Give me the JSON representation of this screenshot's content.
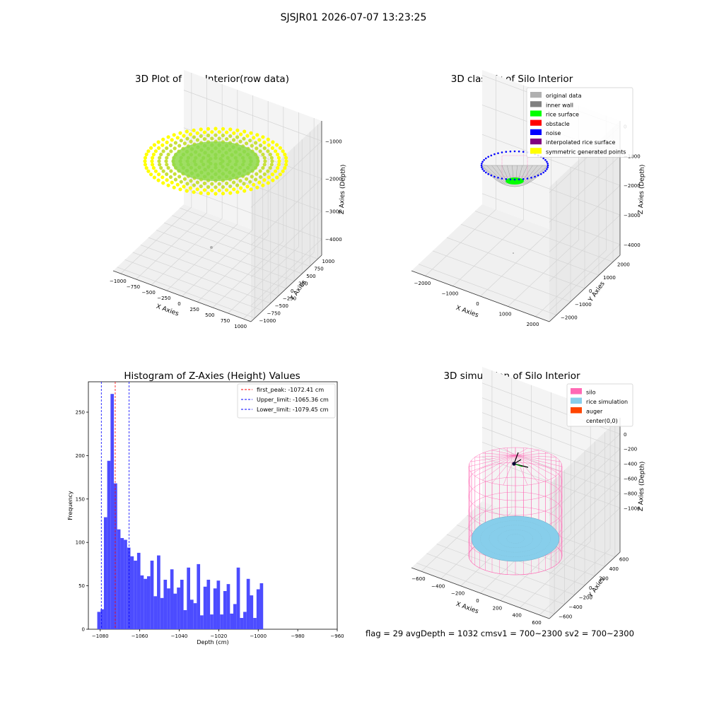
{
  "suptitle": "SJSJR01 2026-07-07 13:23:25",
  "status_line": "flag = 29  avgDepth = 1032 cmsv1 = 700~2300  sv2 = 700~2300",
  "colors": {
    "original": "#b0b0b0",
    "inner_wall": "#808080",
    "rice_surface": "#00ff00",
    "obstacle": "#ff0000",
    "noise": "#0000ff",
    "interpolated": "#800080",
    "symmetric": "#ffff00",
    "hist_bar": "#4c4cff",
    "silo": "#ff69b4",
    "rice_sim": "#87ceeb",
    "auger": "#ff4500"
  },
  "chart_data": [
    {
      "type": "scatter3d",
      "title": "3D Plot of Silo Interior(row data)",
      "xlabel": "X Axies",
      "ylabel": "Y Axies",
      "zlabel": "Z Axies (Depth)",
      "xticks": [
        "−1000",
        "−750",
        "−500",
        "−250",
        "0",
        "250",
        "500",
        "750",
        "1000"
      ],
      "yticks": [
        "−1000",
        "−750",
        "−500",
        "−250",
        "0",
        "250",
        "500",
        "750",
        "1000"
      ],
      "zticks": [
        "−1000",
        "−2000",
        "−3000",
        "−4000"
      ],
      "xlim": [
        -1000,
        1000
      ],
      "ylim": [
        -1000,
        1000
      ],
      "zlim": [
        -4500,
        -500
      ],
      "description_values": {
        "surface_radius": 1000,
        "surface_depth": -1000,
        "stray_point": [
          0,
          0,
          -4000
        ]
      }
    },
    {
      "type": "scatter3d",
      "title": "3D classify of Silo Interior",
      "xlabel": "X Axies",
      "ylabel": "Y Axies",
      "zlabel": "Z Axies (Depth)",
      "xticks": [
        "−2000",
        "−1000",
        "0",
        "1000",
        "2000"
      ],
      "yticks": [
        "−2000",
        "−1000",
        "0",
        "1000",
        "2000"
      ],
      "zticks": [
        "0",
        "−1000",
        "−2000",
        "−3000",
        "−4000"
      ],
      "xlim": [
        -2300,
        2300
      ],
      "ylim": [
        -2300,
        2300
      ],
      "zlim": [
        -4500,
        300
      ],
      "legend_position": "top-right",
      "legend": [
        {
          "label": "original data",
          "color_key": "original"
        },
        {
          "label": "inner wall",
          "color_key": "inner_wall"
        },
        {
          "label": "rice surface",
          "color_key": "rice_surface"
        },
        {
          "label": "obstacle",
          "color_key": "obstacle"
        },
        {
          "label": "noise",
          "color_key": "noise"
        },
        {
          "label": "interpolated rice surface",
          "color_key": "interpolated"
        },
        {
          "label": "symmetric generated points",
          "color_key": "symmetric"
        }
      ]
    },
    {
      "type": "bar",
      "title": "Histogram of Z-Axies (Height) Values",
      "xlabel": "Depth (cm)",
      "ylabel": "Frequency",
      "xlim": [
        -1086,
        -960
      ],
      "ylim": [
        0,
        285
      ],
      "xticks": [
        -1080,
        -1060,
        -1040,
        -1020,
        -1000,
        -980,
        -960
      ],
      "xtick_labels": [
        "−1080",
        "−1060",
        "−1040",
        "−1020",
        "−1000",
        "−980",
        "−960"
      ],
      "yticks": [
        0,
        50,
        100,
        150,
        200,
        250
      ],
      "bin_start": -1081.5,
      "bin_width": 1.68,
      "values": [
        20,
        23,
        129,
        194,
        271,
        168,
        115,
        105,
        103,
        94,
        84,
        79,
        88,
        62,
        58,
        61,
        79,
        38,
        85,
        36,
        57,
        47,
        69,
        41,
        48,
        57,
        22,
        71,
        34,
        30,
        75,
        16,
        49,
        57,
        17,
        47,
        56,
        17,
        44,
        52,
        18,
        29,
        71,
        13,
        20,
        58,
        39,
        13,
        46,
        53
      ],
      "legend_position": "top-right",
      "lines": [
        {
          "label": "first_peak: -1072.41 cm",
          "x": -1072.41,
          "color": "#ff0000"
        },
        {
          "label": "Upper_limit: -1065.36 cm",
          "x": -1065.36,
          "color": "#0000ff"
        },
        {
          "label": "Lower_limit: -1079.45 cm",
          "x": -1079.45,
          "color": "#0000ff"
        }
      ]
    },
    {
      "type": "surface3d",
      "title": "3D simulation of Silo Interior",
      "xlabel": "X Axies",
      "ylabel": "Y Axies",
      "zlabel": "Z Axies (Depth)",
      "xticks": [
        "−600",
        "−400",
        "−200",
        "0",
        "200",
        "400",
        "600"
      ],
      "yticks": [
        "−600",
        "−400",
        "−200",
        "0",
        "200",
        "400",
        "600"
      ],
      "zticks": [
        "0",
        "−200",
        "−400",
        "−600",
        "−800",
        "−1000"
      ],
      "xlim": [
        -650,
        650
      ],
      "ylim": [
        -650,
        650
      ],
      "zlim": [
        -1200,
        100
      ],
      "legend_position": "top-right",
      "legend": [
        {
          "label": "silo",
          "color_key": "silo"
        },
        {
          "label": "rice simulation",
          "color_key": "rice_sim"
        },
        {
          "label": "auger",
          "color_key": "auger"
        },
        {
          "label": "center(0,0)",
          "color_key": ""
        }
      ],
      "silo_radius": 480,
      "silo_depth": -1200,
      "rice_depth": -1032
    }
  ]
}
